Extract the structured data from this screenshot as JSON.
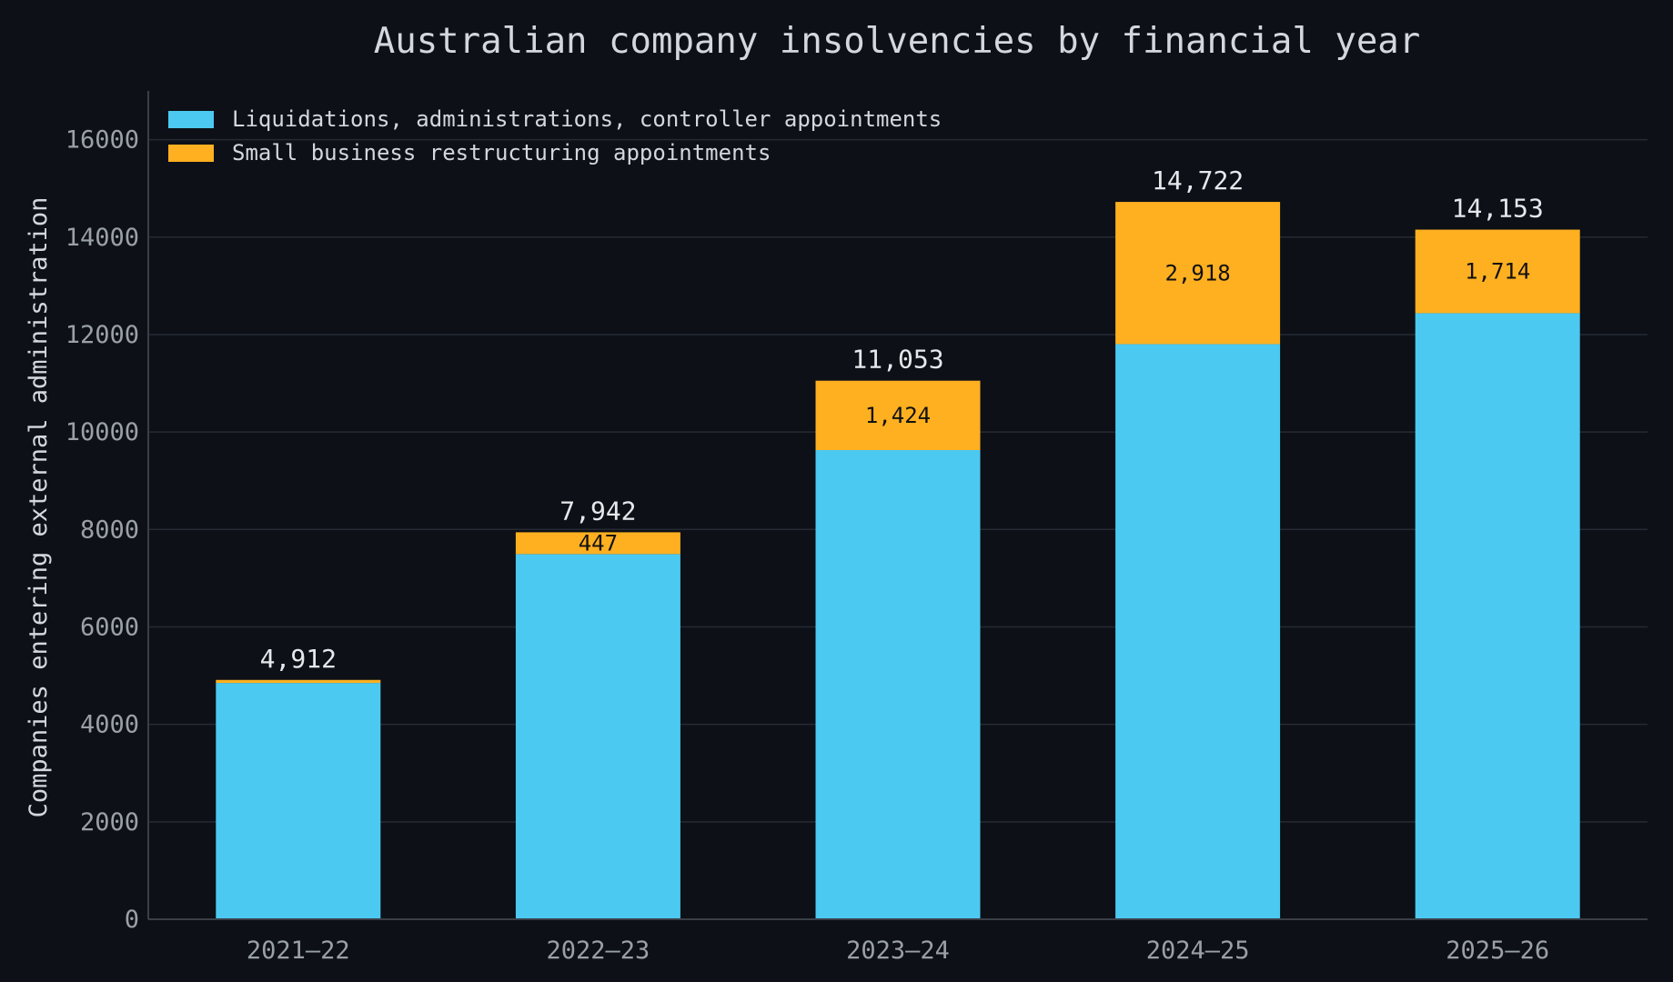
{
  "chart_data": {
    "type": "bar",
    "stacked": true,
    "title": "Australian company insolvencies by financial year",
    "xlabel": "",
    "ylabel": "Companies entering external administration",
    "categories": [
      "2021–22",
      "2022–23",
      "2023–24",
      "2024–25",
      "2025–26"
    ],
    "series": [
      {
        "name": "Liquidations, administrations, controller appointments",
        "color": "#4cc9f0",
        "values": [
          4850,
          7495,
          9629,
          11804,
          12439
        ]
      },
      {
        "name": "Small business restructuring appointments",
        "color": "#ffb020",
        "values": [
          62,
          447,
          1424,
          2918,
          1714
        ]
      }
    ],
    "totals": [
      "4,912",
      "7,942",
      "11,053",
      "14,722",
      "14,153"
    ],
    "segment_labels": [
      "",
      "447",
      "1,424",
      "2,918",
      "1,714"
    ],
    "ylim": [
      0,
      17000
    ],
    "yticks": [
      "0",
      "2000",
      "4000",
      "6000",
      "8000",
      "10000",
      "12000",
      "14000",
      "16000"
    ],
    "grid": true,
    "legend": "top-left"
  },
  "colors": {
    "background": "#0d1017",
    "grid": "#252a33",
    "axis": "#3a3f48"
  }
}
